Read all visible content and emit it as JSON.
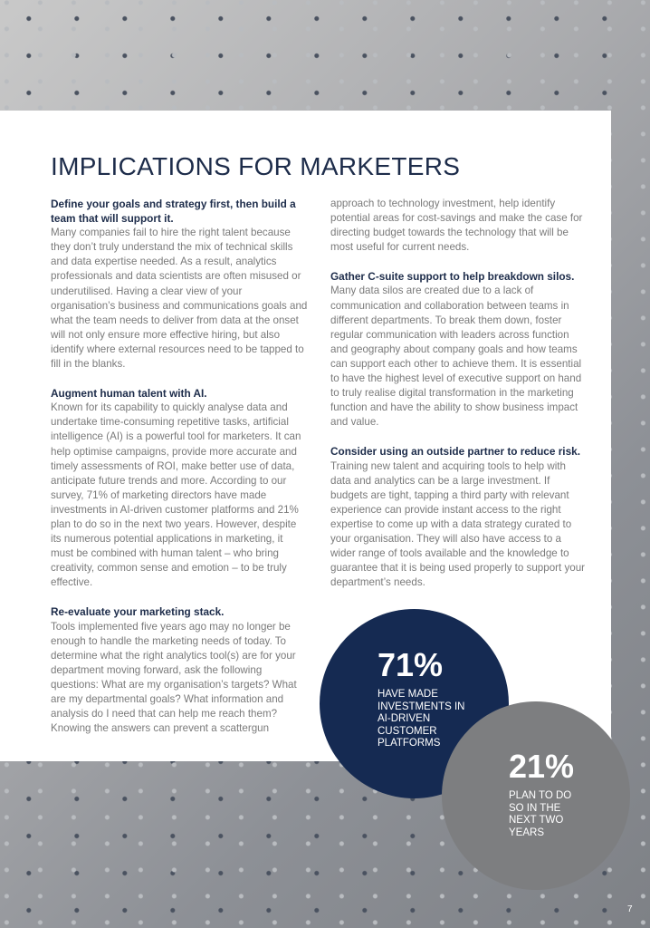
{
  "title": "IMPLICATIONS FOR MARKETERS",
  "left_sections": [
    {
      "heading": "Define your goals and strategy first, then build a team that will support it.",
      "body": "Many companies fail to hire the right talent because they don’t truly understand the mix of technical skills and data expertise needed. As a result, analytics professionals and data scientists are often misused or underutilised. Having a clear view of your organisation’s business and communications goals and what the team needs to deliver from data at the onset will not only ensure more effective hiring, but also identify where external resources need to be tapped to fill in the blanks."
    },
    {
      "heading": "Augment human talent with AI.",
      "body": "Known for its capability to quickly analyse data and undertake time-consuming repetitive tasks, artificial intelligence (AI) is a powerful tool for marketers. It can help optimise campaigns, provide more accurate and timely assessments of ROI, make better use of data, anticipate future trends and more. According to our survey, 71% of marketing directors have made investments in AI-driven customer platforms and 21% plan to do so in the next two years. However, despite its numerous potential applications in marketing, it must be combined with human talent – who bring creativity, common sense and emotion – to be truly effective."
    },
    {
      "heading": "Re-evaluate your marketing stack.",
      "body": "Tools implemented five years ago may no longer be enough to handle the marketing needs of today. To determine what the right analytics tool(s) are for your department moving forward, ask the following questions: What are my organisation’s targets? What are my departmental goals? What information and analysis do I need that can help me reach them? Knowing the answers can prevent a scattergun"
    }
  ],
  "right_sections": [
    {
      "heading": "",
      "body": "approach to technology investment, help identify potential areas for cost-savings and make the case for directing budget towards the technology that will be most useful for current needs."
    },
    {
      "heading": "Gather C-suite support to help breakdown silos.",
      "body": "Many data silos are created due to a lack of communication and collaboration between teams in different departments. To break them down, foster regular communication with leaders across function and geography about company goals and how teams can support each other to achieve them. It is essential to have the highest level of executive support on hand to truly realise digital transformation in the marketing function and have the ability to show business impact and value."
    },
    {
      "heading": "Consider using an outside partner to reduce risk.",
      "body": "Training new talent and acquiring tools to help with data and analytics can be a large investment. If budgets are tight, tapping a third party with relevant experience can provide instant access to the right expertise to come up with a data strategy curated to your organisation. They will also have access to a wider range of tools available and the knowledge to guarantee that it is being used properly to support your department’s needs."
    }
  ],
  "stats": [
    {
      "value": "71%",
      "label": "HAVE MADE INVESTMENTS IN AI-DRIVEN CUSTOMER PLATFORMS",
      "color": "#152a52"
    },
    {
      "value": "21%",
      "label": "PLAN TO DO SO IN THE NEXT TWO YEARS",
      "color": "#7d7e80"
    }
  ],
  "page_number": "7",
  "colors": {
    "heading": "#1d2c4a",
    "body": "#7a7a7a"
  }
}
